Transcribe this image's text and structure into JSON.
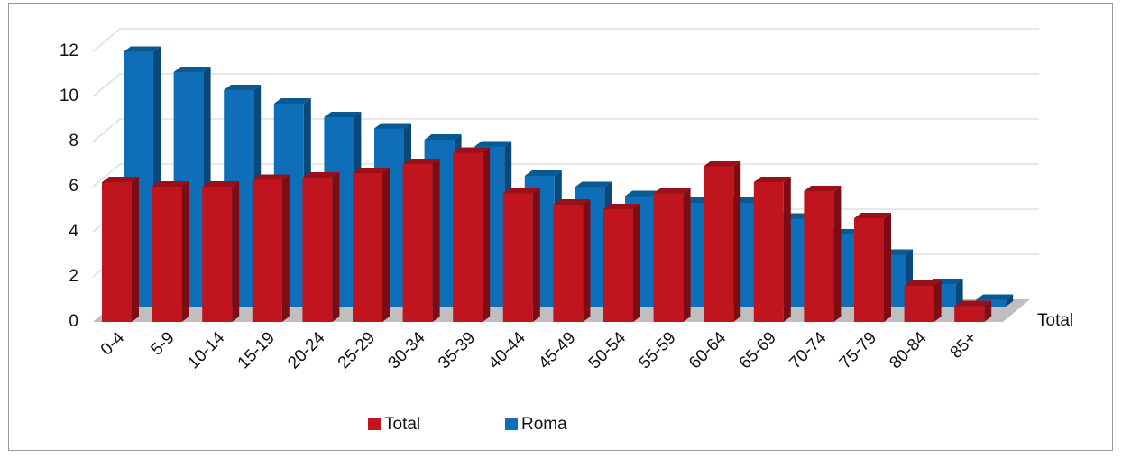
{
  "chart_data": {
    "type": "bar3d",
    "categories": [
      "0-4",
      "5-9",
      "10-14",
      "15-19",
      "20-24",
      "25-29",
      "30-34",
      "35-39",
      "40-44",
      "45-49",
      "50-54",
      "55-59",
      "60-64",
      "65-69",
      "70-74",
      "75-79",
      "80-84",
      "85+"
    ],
    "series": [
      {
        "name": "Total",
        "color": "#c0141f",
        "values": [
          6.2,
          6.0,
          6.0,
          6.3,
          6.4,
          6.6,
          7.0,
          7.5,
          5.7,
          5.2,
          5.0,
          5.7,
          6.9,
          6.2,
          5.8,
          4.6,
          1.6,
          0.7
        ]
      },
      {
        "name": "Roma",
        "color": "#0e6fb8",
        "values": [
          11.3,
          10.4,
          9.6,
          9.0,
          8.4,
          7.9,
          7.4,
          7.1,
          5.8,
          5.3,
          4.9,
          4.6,
          4.6,
          3.9,
          3.2,
          2.3,
          1.0,
          0.3
        ]
      }
    ],
    "depth_label": "Total",
    "ylim": [
      0,
      12
    ],
    "yticks": [
      0,
      2,
      4,
      6,
      8,
      10,
      12
    ],
    "grid": true
  }
}
